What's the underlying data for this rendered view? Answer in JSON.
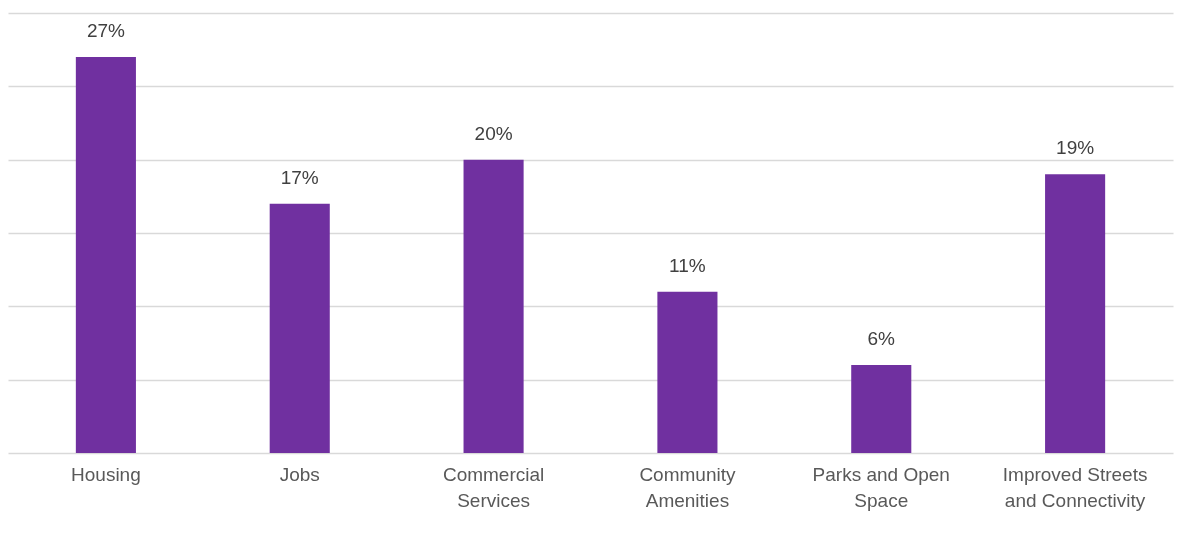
{
  "chart_data": {
    "type": "bar",
    "categories": [
      "Housing",
      "Jobs",
      "Commercial Services",
      "Community Amenities",
      "Parks and Open Space",
      "Improved Streets and Connectivity"
    ],
    "values": [
      27,
      17,
      20,
      11,
      6,
      19
    ],
    "value_labels": [
      "27%",
      "17%",
      "20%",
      "11%",
      "6%",
      "19%"
    ],
    "color": "#7030a0",
    "ylim": [
      0,
      30
    ],
    "yticks": [
      {
        "value": 0,
        "label": null
      },
      {
        "value": 5,
        "label": null
      },
      {
        "value": 10,
        "label": null
      },
      {
        "value": 15,
        "label": null
      },
      {
        "value": 20,
        "label": null
      },
      {
        "value": 25,
        "label": null
      },
      {
        "value": 30,
        "label": null
      }
    ],
    "grid": "y",
    "tick_labels": "x"
  }
}
